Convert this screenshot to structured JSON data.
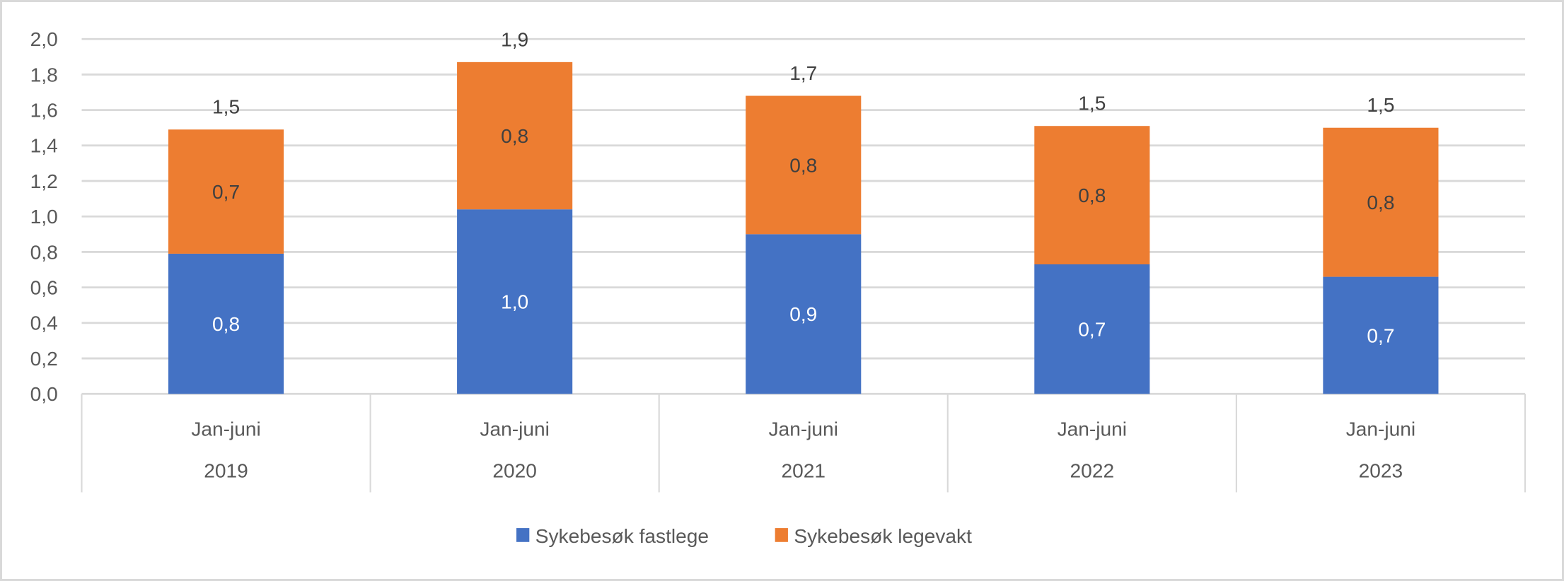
{
  "chart_data": {
    "type": "bar",
    "stacked": true,
    "title": "",
    "xlabel": "",
    "ylabel": "",
    "ylim": [
      0,
      2.0
    ],
    "ytick_step": 0.2,
    "yticks": [
      "0,0",
      "0,2",
      "0,4",
      "0,6",
      "0,8",
      "1,0",
      "1,2",
      "1,4",
      "1,6",
      "1,8",
      "2,0"
    ],
    "grid": true,
    "legend_position": "bottom",
    "categories": [
      {
        "period": "Jan-juni",
        "year": "2019"
      },
      {
        "period": "Jan-juni",
        "year": "2020"
      },
      {
        "period": "Jan-juni",
        "year": "2021"
      },
      {
        "period": "Jan-juni",
        "year": "2022"
      },
      {
        "period": "Jan-juni",
        "year": "2023"
      }
    ],
    "series": [
      {
        "name": "Sykebesøk fastlege",
        "color": "#4472c4",
        "label_color": "#ffffff",
        "values": [
          0.79,
          1.04,
          0.9,
          0.73,
          0.66
        ],
        "labels": [
          "0,8",
          "1,0",
          "0,9",
          "0,7",
          "0,7"
        ]
      },
      {
        "name": "Sykebesøk legevakt",
        "color": "#ed7d31",
        "label_color": "#404040",
        "values": [
          0.7,
          0.83,
          0.78,
          0.78,
          0.84
        ],
        "labels": [
          "0,7",
          "0,8",
          "0,8",
          "0,8",
          "0,8"
        ]
      }
    ],
    "totals": {
      "values": [
        1.49,
        1.87,
        1.68,
        1.51,
        1.5
      ],
      "labels": [
        "1,5",
        "1,9",
        "1,7",
        "1,5",
        "1,5"
      ]
    }
  }
}
